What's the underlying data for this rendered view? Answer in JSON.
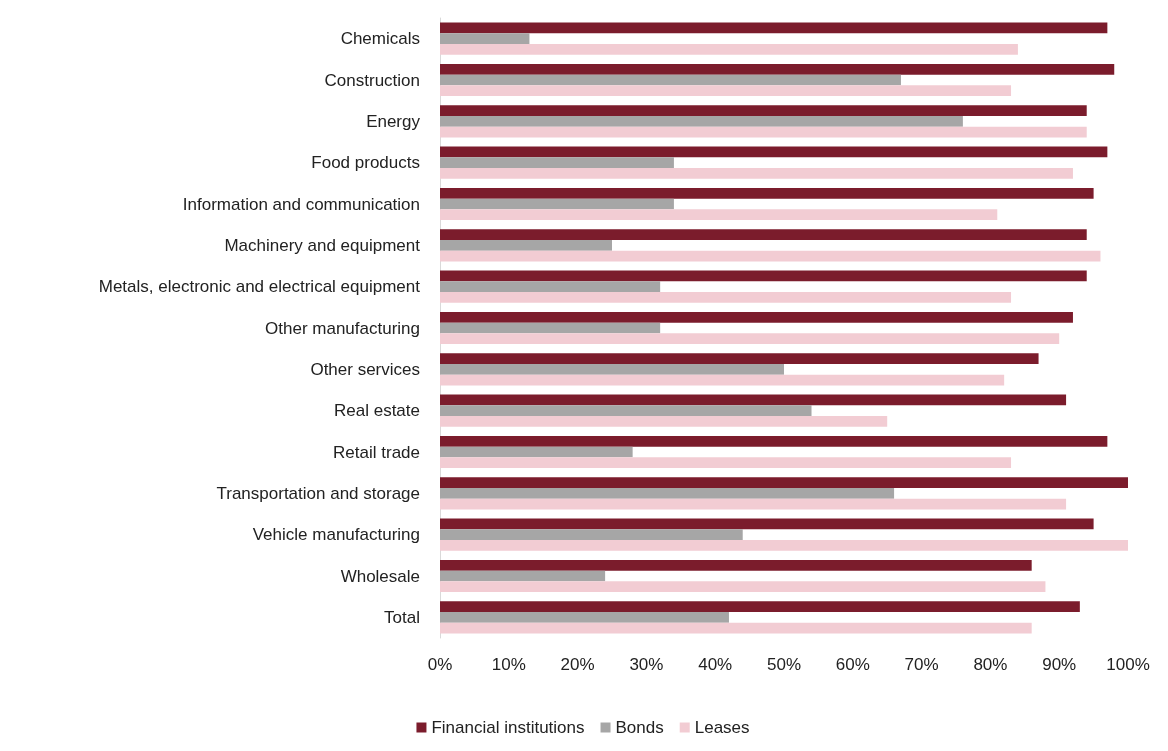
{
  "chart_data": {
    "type": "bar",
    "orientation": "horizontal",
    "categories": [
      "Chemicals",
      "Construction",
      "Energy",
      "Food products",
      "Information and communication",
      "Machinery and equipment",
      "Metals, electronic and electrical equipment",
      "Other manufacturing",
      "Other services",
      "Real estate",
      "Retail trade",
      "Transportation and storage",
      "Vehicle manufacturing",
      "Wholesale",
      "Total"
    ],
    "series": [
      {
        "name": "Financial institutions",
        "color": "#7b1c2c",
        "values": [
          97,
          98,
          94,
          97,
          95,
          94,
          94,
          92,
          87,
          91,
          97,
          100,
          95,
          86,
          93
        ]
      },
      {
        "name": "Bonds",
        "color": "#a6a6a6",
        "values": [
          13,
          67,
          76,
          34,
          34,
          25,
          32,
          32,
          50,
          54,
          28,
          66,
          44,
          24,
          42
        ]
      },
      {
        "name": "Leases",
        "color": "#f2ccd3",
        "values": [
          84,
          83,
          94,
          92,
          81,
          96,
          83,
          90,
          82,
          65,
          83,
          91,
          100,
          88,
          86
        ]
      }
    ],
    "xlim": [
      0,
      100
    ],
    "xticks": [
      {
        "value": 0,
        "label": "0%"
      },
      {
        "value": 10,
        "label": "10%"
      },
      {
        "value": 20,
        "label": "20%"
      },
      {
        "value": 30,
        "label": "30%"
      },
      {
        "value": 40,
        "label": "40%"
      },
      {
        "value": 50,
        "label": "50%"
      },
      {
        "value": 60,
        "label": "60%"
      },
      {
        "value": 70,
        "label": "70%"
      },
      {
        "value": 80,
        "label": "80%"
      },
      {
        "value": 90,
        "label": "90%"
      },
      {
        "value": 100,
        "label": "100%"
      }
    ],
    "grid": false,
    "legend": "bottom"
  }
}
